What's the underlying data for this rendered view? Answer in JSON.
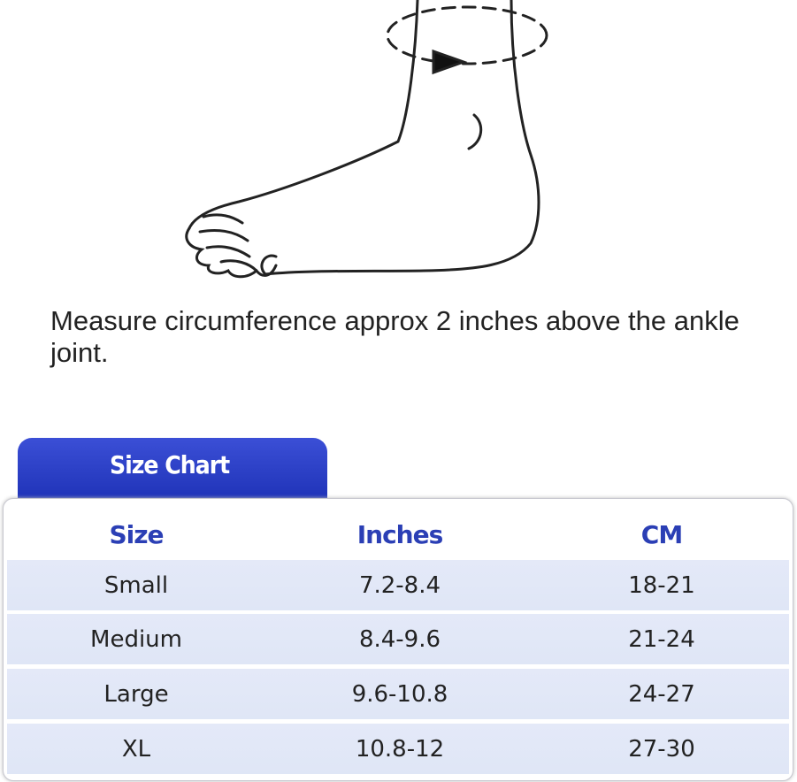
{
  "instruction": "Measure circumference approx 2 inches above the ankle joint.",
  "size_chart": {
    "tab_label": "Size Chart",
    "headers": [
      "Size",
      "Inches",
      "CM"
    ],
    "rows": [
      [
        "Small",
        "7.2-8.4",
        "18-21"
      ],
      [
        "Medium",
        "8.4-9.6",
        "21-24"
      ],
      [
        "Large",
        "9.6-10.8",
        "24-27"
      ],
      [
        "XL",
        "10.8-12",
        "27-30"
      ]
    ]
  },
  "colors": {
    "tab": "#2a3fc4",
    "header_text": "#2b3fb5",
    "row_bg": "#e2e8f7"
  }
}
